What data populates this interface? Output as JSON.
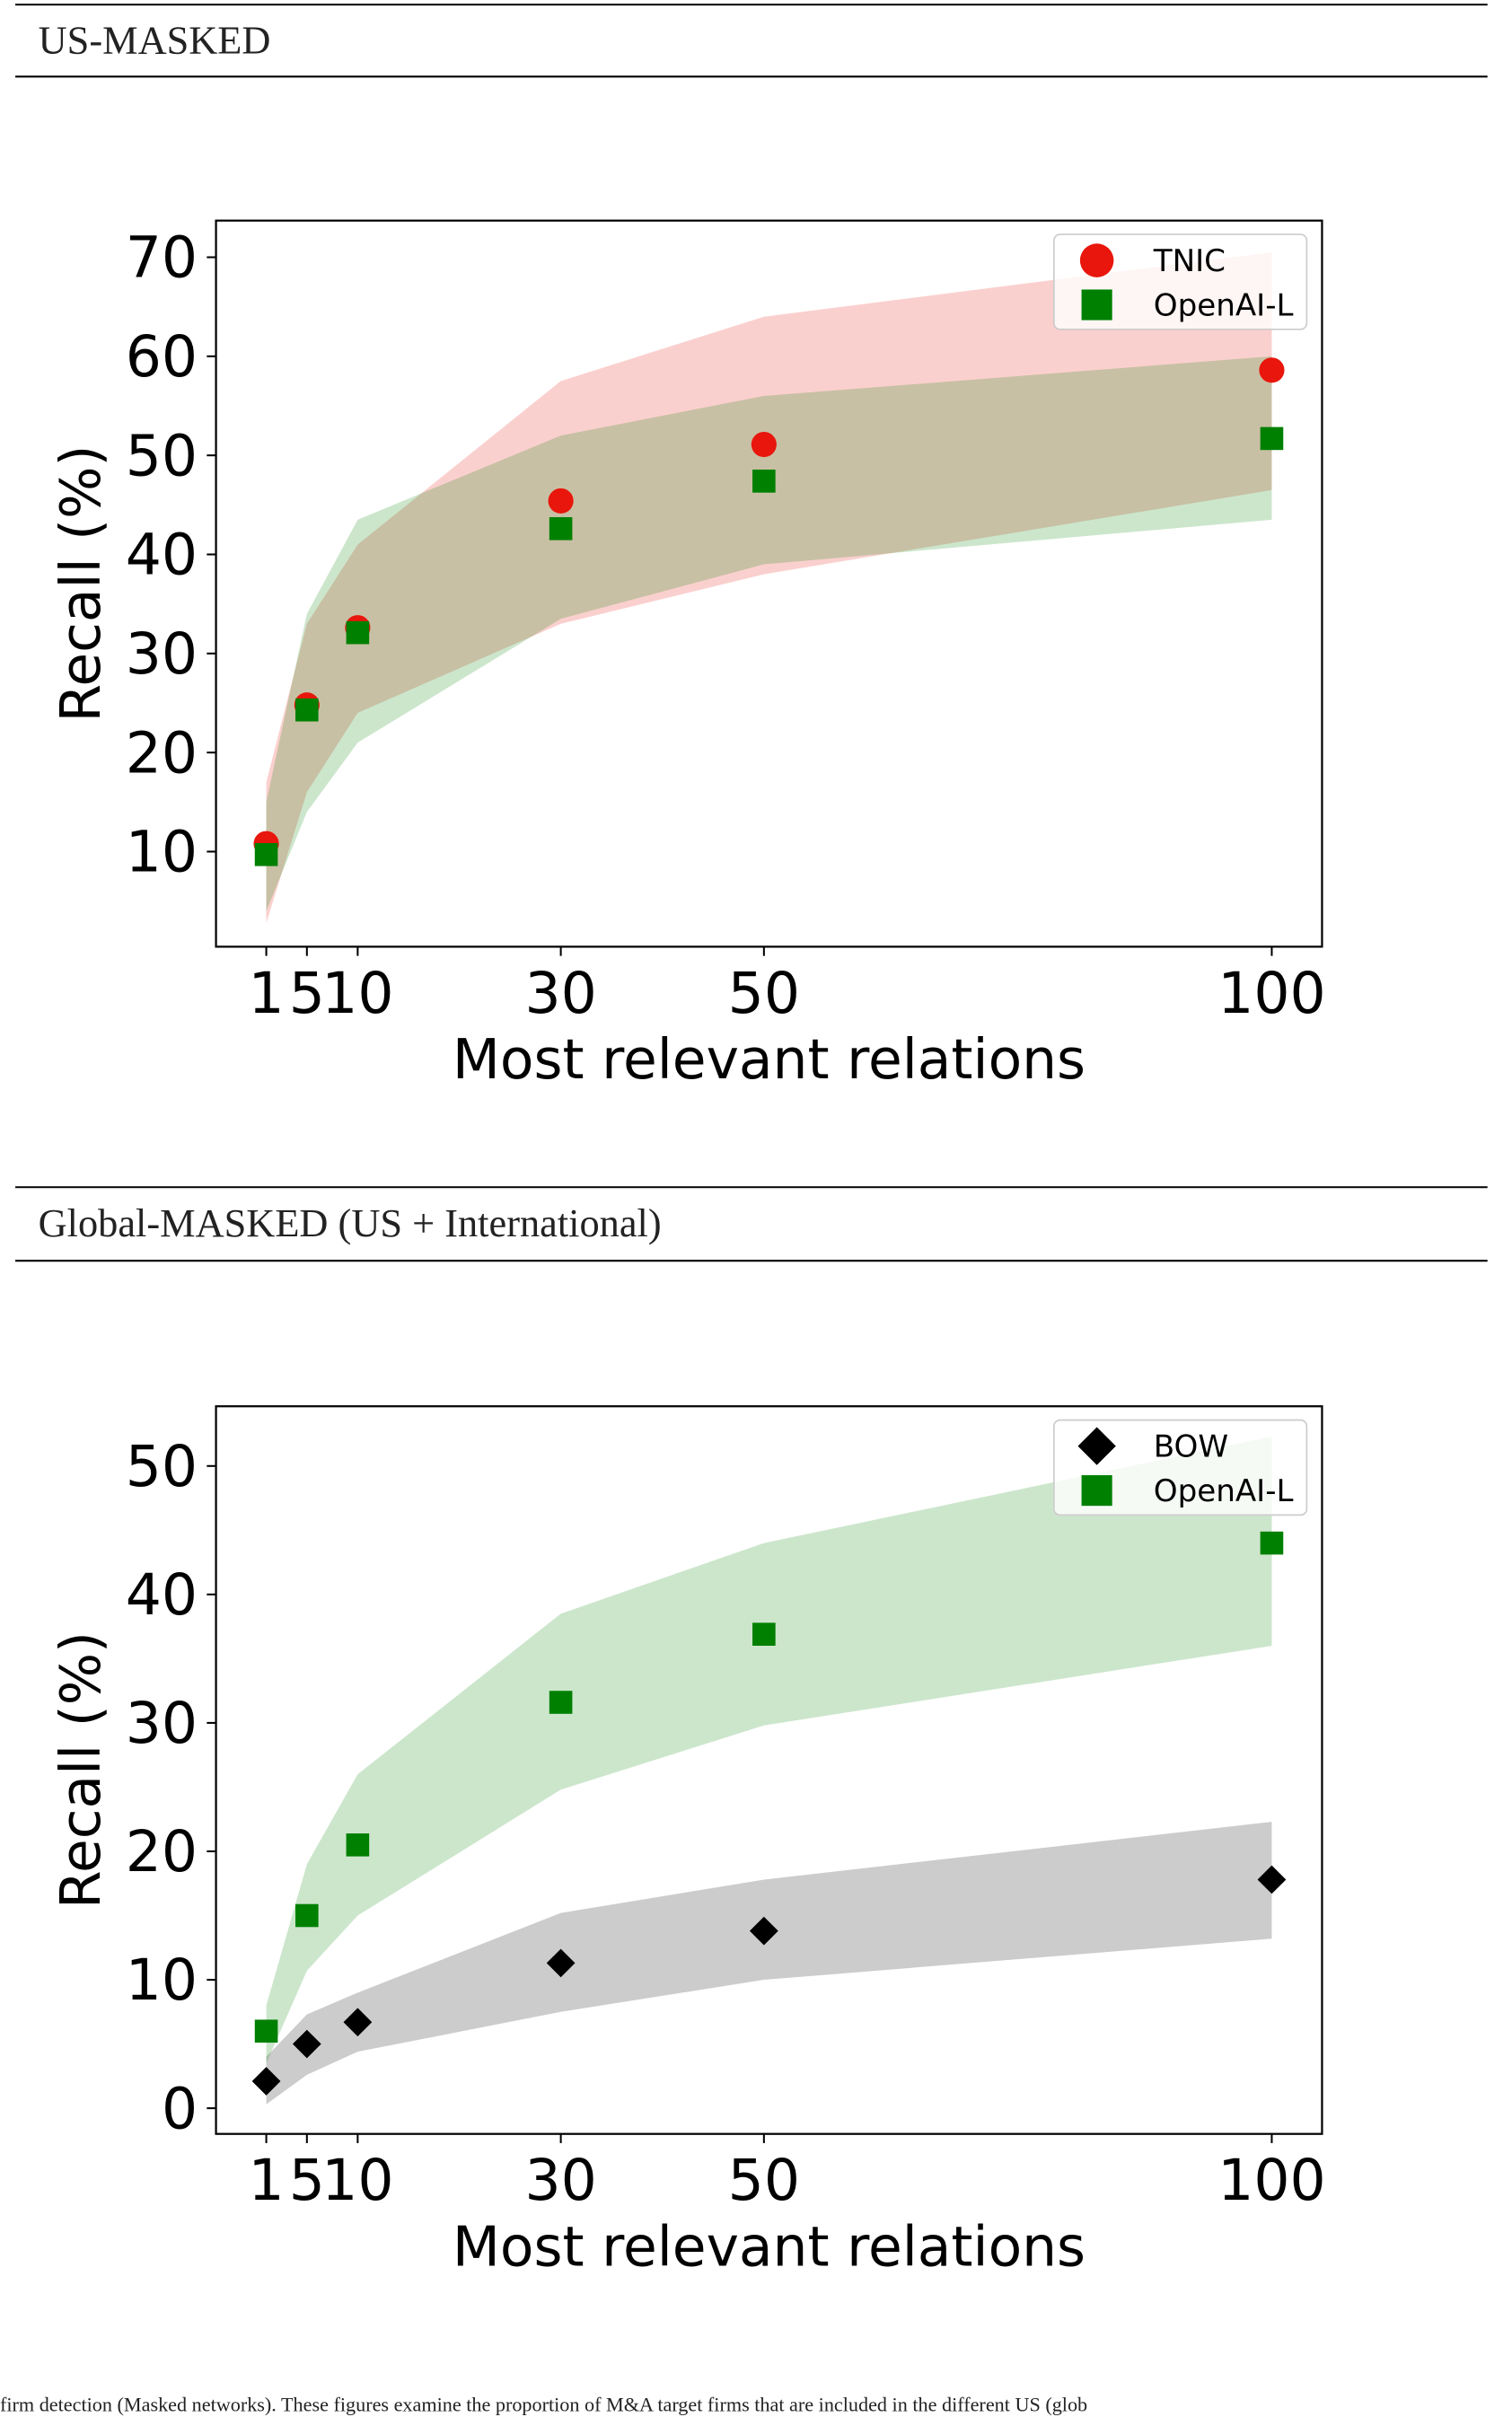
{
  "headers": [
    "US-MASKED",
    "Global-MASKED (US + International)"
  ],
  "caption": "firm detection (Masked networks). These figures examine the proportion of M&A target firms that are included in the different US (glob",
  "chart_data": [
    {
      "type": "scatter",
      "xlabel": "Most relevant relations",
      "ylabel": "Recall (%)",
      "x": [
        1,
        5,
        10,
        30,
        50,
        100
      ],
      "xlim": [
        -3.95,
        104.95
      ],
      "xticks": [
        1,
        5,
        10,
        30,
        50,
        100
      ],
      "ylim": [
        0.4,
        73.7
      ],
      "yticks": [
        10,
        20,
        30,
        40,
        50,
        60,
        70
      ],
      "legend": "upper right",
      "series": [
        {
          "name": "TNIC",
          "color": "#e8160c",
          "marker": "circle",
          "values": [
            10.8,
            24.8,
            32.6,
            45.4,
            51.1,
            58.6
          ],
          "lower": [
            2.8,
            16,
            24,
            33,
            38,
            46.5
          ],
          "upper": [
            17,
            33,
            41,
            57.5,
            64,
            70.5
          ]
        },
        {
          "name": "OpenAI-L",
          "color": "#008000",
          "marker": "square",
          "values": [
            9.7,
            24.3,
            32.1,
            42.6,
            47.4,
            51.7
          ],
          "lower": [
            4,
            14,
            21,
            33.5,
            39,
            43.5
          ],
          "upper": [
            15,
            34,
            43.5,
            52,
            56,
            60
          ]
        }
      ]
    },
    {
      "type": "scatter",
      "xlabel": "Most relevant relations",
      "ylabel": "Recall (%)",
      "x": [
        1,
        5,
        10,
        30,
        50,
        100
      ],
      "xlim": [
        -3.95,
        104.95
      ],
      "xticks": [
        1,
        5,
        10,
        30,
        50,
        100
      ],
      "ylim": [
        -2.0,
        54.65
      ],
      "yticks": [
        0,
        10,
        20,
        30,
        40,
        50
      ],
      "legend": "upper right",
      "series": [
        {
          "name": "BOW",
          "color": "#000000",
          "marker": "diamond",
          "values": [
            2.1,
            5.0,
            6.7,
            11.3,
            13.8,
            17.8
          ],
          "lower": [
            0.3,
            2.6,
            4.4,
            7.5,
            10,
            13.2
          ],
          "upper": [
            4,
            7.3,
            9,
            15.2,
            17.8,
            22.3
          ]
        },
        {
          "name": "OpenAI-L",
          "color": "#008000",
          "marker": "square",
          "values": [
            6.0,
            15.0,
            20.5,
            31.6,
            36.9,
            44.0
          ],
          "lower": [
            3.5,
            10.7,
            15,
            24.8,
            29.8,
            36
          ],
          "upper": [
            8,
            19,
            26,
            38.5,
            44,
            52.3
          ]
        }
      ]
    }
  ]
}
